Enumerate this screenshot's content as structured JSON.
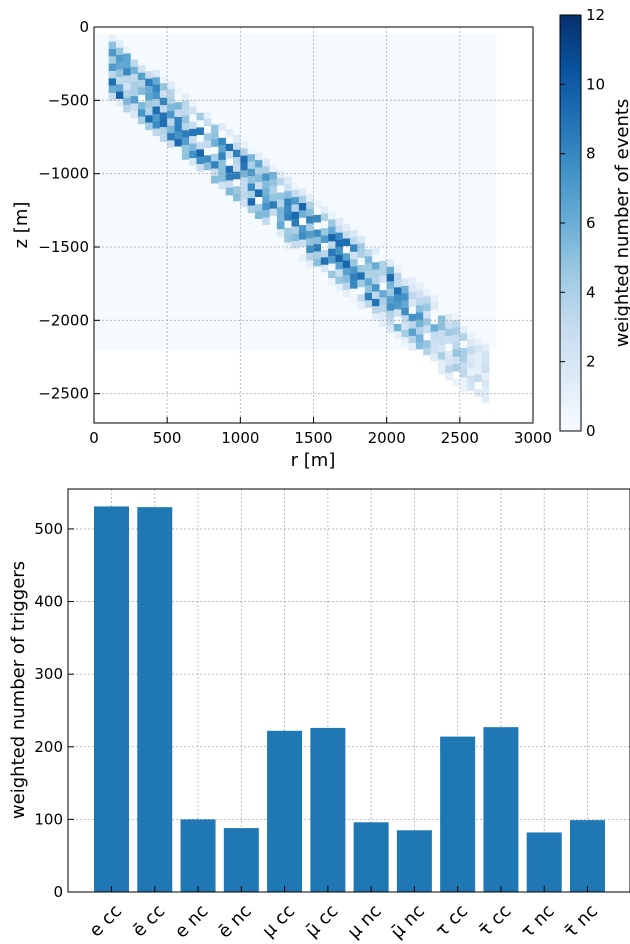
{
  "chart_data": [
    {
      "type": "heatmap",
      "xlabel": "r [m]",
      "ylabel": "z [m]",
      "xlim": [
        0,
        3000
      ],
      "ylim": [
        -2700,
        0
      ],
      "xticks": [
        "0",
        "500",
        "1000",
        "1500",
        "2000",
        "2500",
        "3000"
      ],
      "yticks": [
        "0",
        "−500",
        "−1000",
        "−1500",
        "−2000",
        "−2500"
      ],
      "xtick_values": [
        0,
        500,
        1000,
        1500,
        2000,
        2500,
        3000
      ],
      "ytick_values": [
        0,
        -500,
        -1000,
        -1500,
        -2000,
        -2500
      ],
      "colorbar": {
        "label": "weighted number of events",
        "range": [
          0,
          12
        ],
        "ticks": [
          "0",
          "2",
          "4",
          "6",
          "8",
          "10",
          "12"
        ],
        "tick_values": [
          0,
          2,
          4,
          6,
          8,
          10,
          12
        ],
        "colormap": "Blues"
      },
      "grid": true,
      "bin_size_m": [
        50,
        50
      ],
      "background_region": {
        "r": [
          0,
          2750
        ],
        "z": [
          -2200,
          -50
        ],
        "value": 0.1
      },
      "band": {
        "upper_edge": [
          [
            100,
            -50
          ],
          [
            2700,
            -2150
          ]
        ],
        "lower_edge": [
          [
            100,
            -400
          ],
          [
            2300,
            -2200
          ]
        ]
      }
    },
    {
      "type": "bar",
      "categories": [
        "e cc",
        "ē cc",
        "e nc",
        "ē nc",
        "μ cc",
        "μ̄ cc",
        "μ nc",
        "μ̄ nc",
        "τ cc",
        "τ̄ cc",
        "τ nc",
        "τ̄ nc"
      ],
      "values": [
        531,
        530,
        100,
        88,
        222,
        226,
        96,
        85,
        214,
        227,
        82,
        99
      ],
      "xlabel": "",
      "ylabel": "weighted number of triggers",
      "ylim": [
        0,
        555
      ],
      "yticks": [
        "0",
        "100",
        "200",
        "300",
        "400",
        "500"
      ],
      "ytick_values": [
        0,
        100,
        200,
        300,
        400,
        500
      ],
      "grid": true,
      "color": "#1f77b4"
    }
  ]
}
